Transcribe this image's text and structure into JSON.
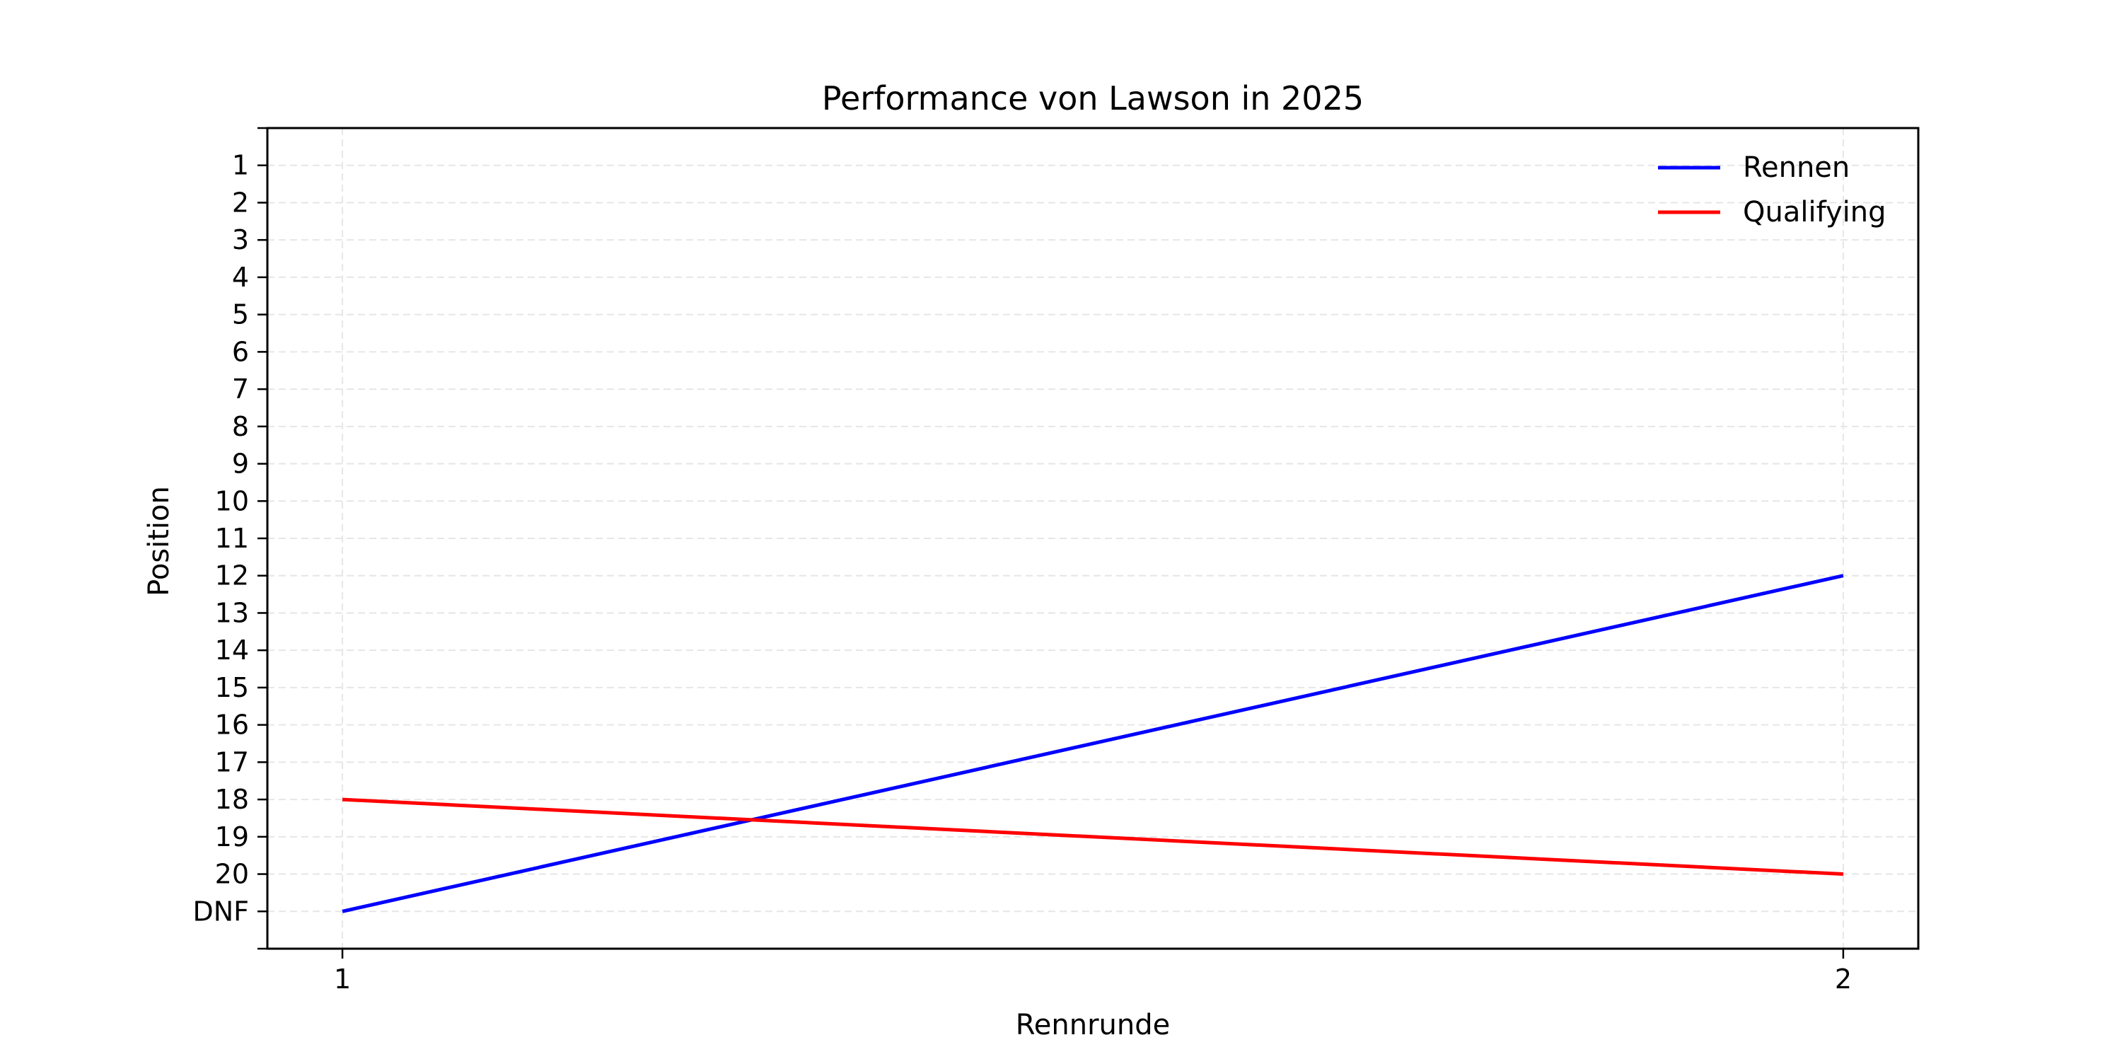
{
  "chart_data": {
    "type": "line",
    "title": "Performance von Lawson in 2025",
    "xlabel": "Rennrunde",
    "ylabel": "Position",
    "x": [
      1,
      2
    ],
    "x_tick_labels": [
      "1",
      "2"
    ],
    "xlim": [
      0.95,
      2.05
    ],
    "y_tick_values": [
      1,
      2,
      3,
      4,
      5,
      6,
      7,
      8,
      9,
      10,
      11,
      12,
      13,
      14,
      15,
      16,
      17,
      18,
      19,
      20,
      21
    ],
    "y_tick_labels": [
      "1",
      "2",
      "3",
      "4",
      "5",
      "6",
      "7",
      "8",
      "9",
      "10",
      "11",
      "12",
      "13",
      "14",
      "15",
      "16",
      "17",
      "18",
      "19",
      "20",
      "DNF"
    ],
    "ylim": [
      22,
      0
    ],
    "y_inverted": true,
    "grid": true,
    "legend_position": "top-right",
    "series": [
      {
        "name": "Rennen",
        "color": "#0000ff",
        "values": [
          21,
          12
        ]
      },
      {
        "name": "Qualifying",
        "color": "#ff0000",
        "values": [
          18,
          20
        ]
      }
    ]
  }
}
